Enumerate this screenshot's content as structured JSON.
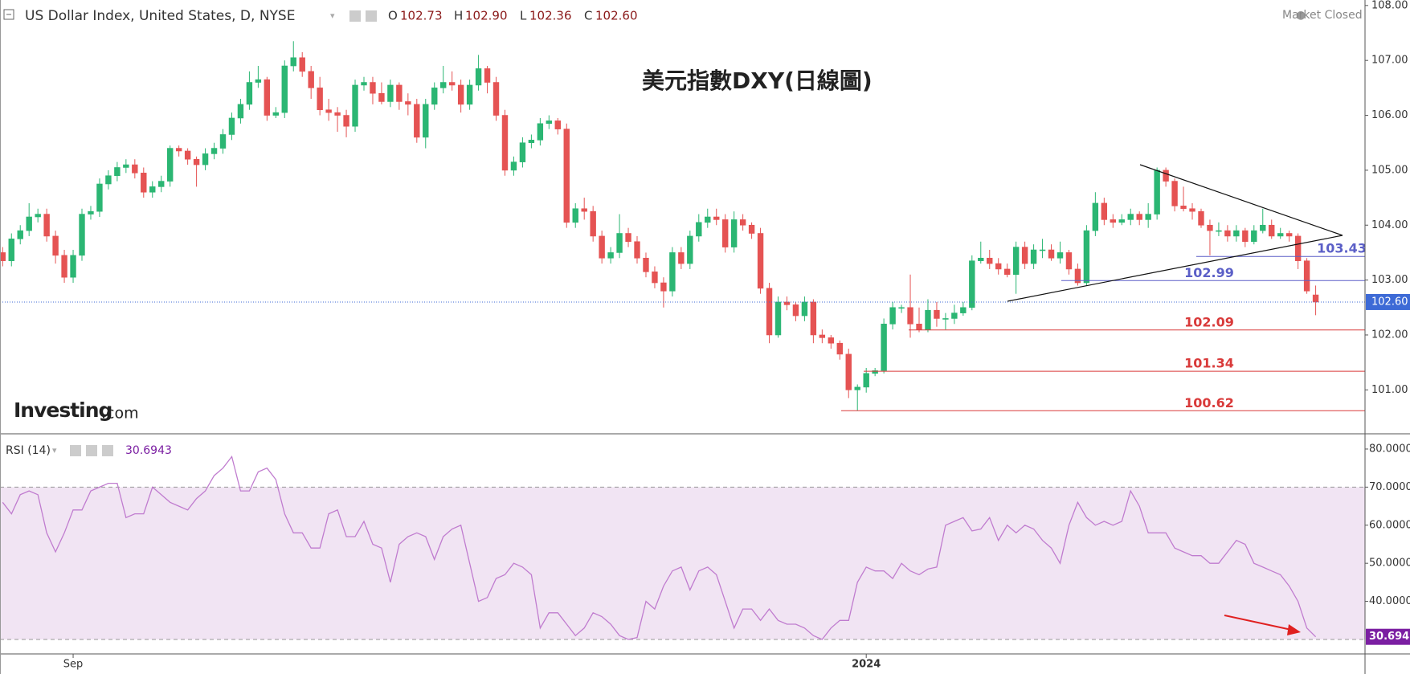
{
  "chart_data": [
    {
      "type": "candlestick",
      "title": "US Dollar Index, United States, D, NYSE",
      "annotation": "美元指數DXY(日線圖)",
      "status": "Market Closed",
      "logo": [
        "Investing",
        ".com"
      ],
      "ohlc_header": [
        {
          "key": "O",
          "value": "102.73"
        },
        {
          "key": "H",
          "value": "102.90"
        },
        {
          "key": "L",
          "value": "102.36"
        },
        {
          "key": "C",
          "value": "102.60"
        }
      ],
      "up_color": "#2bb673",
      "down_color": "#e55353",
      "ohlc": [
        [
          103.5,
          103.6,
          103.25,
          103.35
        ],
        [
          103.35,
          103.85,
          103.25,
          103.75
        ],
        [
          103.75,
          104.0,
          103.65,
          103.9
        ],
        [
          103.9,
          104.4,
          103.8,
          104.15
        ],
        [
          104.15,
          104.3,
          104.05,
          104.2
        ],
        [
          104.2,
          104.3,
          103.7,
          103.8
        ],
        [
          103.8,
          103.9,
          103.3,
          103.45
        ],
        [
          103.45,
          103.55,
          102.95,
          103.05
        ],
        [
          103.05,
          103.55,
          102.95,
          103.45
        ],
        [
          103.45,
          104.3,
          103.35,
          104.2
        ],
        [
          104.2,
          104.35,
          104.1,
          104.25
        ],
        [
          104.25,
          104.85,
          104.15,
          104.75
        ],
        [
          104.75,
          105.0,
          104.65,
          104.9
        ],
        [
          104.9,
          105.15,
          104.8,
          105.05
        ],
        [
          105.05,
          105.2,
          104.95,
          105.1
        ],
        [
          105.1,
          105.2,
          104.85,
          104.95
        ],
        [
          104.95,
          105.05,
          104.5,
          104.6
        ],
        [
          104.6,
          104.8,
          104.5,
          104.7
        ],
        [
          104.7,
          104.9,
          104.6,
          104.8
        ],
        [
          104.8,
          105.45,
          104.7,
          105.4
        ],
        [
          105.4,
          105.45,
          105.25,
          105.35
        ],
        [
          105.35,
          105.4,
          105.1,
          105.2
        ],
        [
          105.2,
          105.25,
          104.7,
          105.1
        ],
        [
          105.1,
          105.4,
          105.0,
          105.3
        ],
        [
          105.3,
          105.5,
          105.2,
          105.4
        ],
        [
          105.4,
          105.75,
          105.3,
          105.65
        ],
        [
          105.65,
          106.05,
          105.55,
          105.95
        ],
        [
          105.95,
          106.3,
          105.85,
          106.2
        ],
        [
          106.2,
          106.8,
          106.1,
          106.6
        ],
        [
          106.6,
          106.9,
          106.5,
          106.65
        ],
        [
          106.65,
          106.7,
          105.9,
          106.0
        ],
        [
          106.0,
          106.15,
          105.95,
          106.05
        ],
        [
          106.05,
          107.0,
          105.95,
          106.9
        ],
        [
          106.9,
          107.35,
          106.8,
          107.05
        ],
        [
          107.05,
          107.15,
          106.7,
          106.8
        ],
        [
          106.8,
          106.9,
          106.3,
          106.5
        ],
        [
          106.5,
          106.7,
          106.0,
          106.1
        ],
        [
          106.1,
          106.3,
          105.9,
          106.05
        ],
        [
          106.05,
          106.15,
          105.7,
          106.0
        ],
        [
          106.0,
          106.1,
          105.6,
          105.8
        ],
        [
          105.8,
          106.65,
          105.7,
          106.55
        ],
        [
          106.55,
          106.7,
          106.45,
          106.6
        ],
        [
          106.6,
          106.7,
          106.2,
          106.4
        ],
        [
          106.4,
          106.6,
          106.2,
          106.25
        ],
        [
          106.25,
          106.65,
          106.15,
          106.55
        ],
        [
          106.55,
          106.6,
          106.1,
          106.25
        ],
        [
          106.25,
          106.4,
          106.0,
          106.2
        ],
        [
          106.2,
          106.3,
          105.5,
          105.6
        ],
        [
          105.6,
          106.3,
          105.4,
          106.2
        ],
        [
          106.2,
          106.6,
          106.1,
          106.5
        ],
        [
          106.5,
          106.9,
          106.4,
          106.6
        ],
        [
          106.6,
          106.8,
          106.45,
          106.55
        ],
        [
          106.55,
          106.65,
          106.05,
          106.2
        ],
        [
          106.2,
          106.65,
          106.1,
          106.55
        ],
        [
          106.55,
          107.1,
          106.45,
          106.85
        ],
        [
          106.85,
          106.9,
          106.4,
          106.6
        ],
        [
          106.6,
          106.7,
          105.9,
          106.0
        ],
        [
          106.0,
          106.1,
          104.9,
          105.0
        ],
        [
          105.0,
          105.25,
          104.9,
          105.15
        ],
        [
          105.15,
          105.6,
          105.05,
          105.5
        ],
        [
          105.5,
          105.65,
          105.4,
          105.55
        ],
        [
          105.55,
          105.95,
          105.45,
          105.85
        ],
        [
          105.85,
          106.0,
          105.75,
          105.9
        ],
        [
          105.9,
          105.95,
          105.65,
          105.75
        ],
        [
          105.75,
          105.85,
          103.95,
          104.05
        ],
        [
          104.05,
          104.4,
          103.95,
          104.3
        ],
        [
          104.3,
          104.5,
          104.1,
          104.25
        ],
        [
          104.25,
          104.35,
          103.7,
          103.8
        ],
        [
          103.8,
          103.9,
          103.3,
          103.4
        ],
        [
          103.4,
          103.6,
          103.3,
          103.5
        ],
        [
          103.5,
          104.2,
          103.4,
          103.85
        ],
        [
          103.85,
          103.95,
          103.6,
          103.7
        ],
        [
          103.7,
          103.8,
          103.3,
          103.4
        ],
        [
          103.4,
          103.5,
          103.05,
          103.15
        ],
        [
          103.15,
          103.25,
          102.85,
          102.95
        ],
        [
          102.95,
          103.05,
          102.5,
          102.8
        ],
        [
          102.8,
          103.6,
          102.7,
          103.5
        ],
        [
          103.5,
          103.6,
          103.2,
          103.3
        ],
        [
          103.3,
          103.9,
          103.2,
          103.8
        ],
        [
          103.8,
          104.2,
          103.7,
          104.05
        ],
        [
          104.05,
          104.3,
          103.95,
          104.15
        ],
        [
          104.15,
          104.3,
          104.0,
          104.1
        ],
        [
          104.1,
          104.2,
          103.5,
          103.6
        ],
        [
          103.6,
          104.25,
          103.5,
          104.1
        ],
        [
          104.1,
          104.2,
          103.9,
          104.0
        ],
        [
          104.0,
          104.05,
          103.75,
          103.85
        ],
        [
          103.85,
          103.95,
          102.75,
          102.85
        ],
        [
          102.85,
          102.95,
          101.85,
          102.0
        ],
        [
          102.0,
          102.7,
          101.95,
          102.6
        ],
        [
          102.6,
          102.7,
          102.45,
          102.55
        ],
        [
          102.55,
          102.6,
          102.25,
          102.35
        ],
        [
          102.35,
          102.7,
          102.25,
          102.6
        ],
        [
          102.6,
          102.65,
          101.85,
          102.0
        ],
        [
          102.0,
          102.1,
          101.85,
          101.95
        ],
        [
          101.95,
          102.0,
          101.75,
          101.85
        ],
        [
          101.85,
          101.9,
          101.55,
          101.65
        ],
        [
          101.65,
          101.75,
          100.85,
          101.0
        ],
        [
          101.0,
          101.1,
          100.62,
          101.05
        ],
        [
          101.05,
          101.4,
          100.95,
          101.3
        ],
        [
          101.3,
          101.4,
          101.25,
          101.35
        ],
        [
          101.35,
          102.3,
          101.3,
          102.2
        ],
        [
          102.2,
          102.6,
          102.1,
          102.5
        ],
        [
          102.5,
          102.55,
          102.4,
          102.5
        ],
        [
          102.5,
          103.1,
          101.95,
          102.2
        ],
        [
          102.2,
          102.5,
          102.05,
          102.1
        ],
        [
          102.1,
          102.65,
          102.05,
          102.45
        ],
        [
          102.45,
          102.6,
          102.15,
          102.3
        ],
        [
          102.3,
          102.4,
          102.1,
          102.3
        ],
        [
          102.3,
          102.55,
          102.2,
          102.4
        ],
        [
          102.4,
          102.6,
          102.35,
          102.5
        ],
        [
          102.5,
          103.45,
          102.45,
          103.35
        ],
        [
          103.35,
          103.7,
          103.3,
          103.4
        ],
        [
          103.4,
          103.55,
          103.2,
          103.3
        ],
        [
          103.3,
          103.4,
          103.1,
          103.2
        ],
        [
          103.2,
          103.3,
          103.05,
          103.1
        ],
        [
          103.1,
          103.7,
          102.75,
          103.6
        ],
        [
          103.6,
          103.7,
          103.2,
          103.3
        ],
        [
          103.3,
          103.65,
          103.2,
          103.55
        ],
        [
          103.55,
          103.75,
          103.4,
          103.55
        ],
        [
          103.55,
          103.65,
          103.35,
          103.4
        ],
        [
          103.4,
          103.7,
          103.3,
          103.5
        ],
        [
          103.5,
          103.55,
          103.1,
          103.2
        ],
        [
          103.2,
          103.3,
          102.9,
          102.95
        ],
        [
          102.95,
          104.0,
          102.9,
          103.9
        ],
        [
          103.9,
          104.6,
          103.8,
          104.4
        ],
        [
          104.4,
          104.5,
          104.0,
          104.1
        ],
        [
          104.1,
          104.2,
          103.95,
          104.05
        ],
        [
          104.05,
          104.2,
          104.0,
          104.1
        ],
        [
          104.1,
          104.3,
          104.0,
          104.2
        ],
        [
          104.2,
          104.25,
          104.0,
          104.1
        ],
        [
          104.1,
          104.4,
          103.95,
          104.2
        ],
        [
          104.2,
          105.05,
          104.1,
          105.0
        ],
        [
          105.0,
          105.05,
          104.7,
          104.8
        ],
        [
          104.8,
          104.85,
          104.25,
          104.35
        ],
        [
          104.35,
          104.7,
          104.25,
          104.3
        ],
        [
          104.3,
          104.4,
          104.1,
          104.25
        ],
        [
          104.25,
          104.3,
          103.95,
          104.0
        ],
        [
          104.0,
          104.1,
          103.45,
          103.9
        ],
        [
          103.9,
          104.05,
          103.8,
          103.9
        ],
        [
          103.9,
          104.0,
          103.7,
          103.8
        ],
        [
          103.8,
          104.0,
          103.7,
          103.9
        ],
        [
          103.9,
          103.95,
          103.6,
          103.7
        ],
        [
          103.7,
          104.0,
          103.65,
          103.9
        ],
        [
          103.9,
          104.3,
          103.85,
          104.0
        ],
        [
          104.0,
          104.1,
          103.75,
          103.8
        ],
        [
          103.8,
          103.95,
          103.75,
          103.85
        ],
        [
          103.85,
          103.9,
          103.7,
          103.8
        ],
        [
          103.8,
          103.85,
          103.2,
          103.35
        ],
        [
          103.35,
          103.4,
          102.75,
          102.8
        ],
        [
          102.73,
          102.9,
          102.36,
          102.6
        ]
      ],
      "xlim": [
        -0.3,
        154.6
      ],
      "ylim": [
        100.2,
        108.1
      ],
      "yticks": [
        {
          "value": 101,
          "label": "101.00"
        },
        {
          "value": 102,
          "label": "102.00"
        },
        {
          "value": 103,
          "label": "103.00"
        },
        {
          "value": 104,
          "label": "104.00"
        },
        {
          "value": 105,
          "label": "105.00"
        },
        {
          "value": 106,
          "label": "106.00"
        },
        {
          "value": 107,
          "label": "107.00"
        },
        {
          "value": 108,
          "label": "108.00"
        }
      ],
      "last_price": {
        "value": 102.6,
        "label": "102.60",
        "color": "#3d6ad6"
      },
      "levels": [
        {
          "value": 103.43,
          "color": "#5b5fc7"
        },
        {
          "value": 102.99,
          "color": "#5b5fc7"
        },
        {
          "value": 102.09,
          "color": "#d93a3a"
        },
        {
          "value": 101.34,
          "color": "#d93a3a"
        },
        {
          "value": 100.62,
          "color": "#d93a3a"
        }
      ]
    },
    {
      "type": "line",
      "title": "RSI (14)",
      "color": "#c07ccf",
      "tag_color": "#7b1fa2",
      "band": [
        30,
        70
      ],
      "band_color": "#f1e4f3",
      "values": [
        66,
        63,
        68,
        69,
        68,
        58,
        53,
        58,
        64,
        64,
        69,
        70,
        71,
        71,
        62,
        63,
        63,
        70,
        68,
        66,
        65,
        64,
        67,
        69,
        73,
        75,
        78,
        69,
        69,
        74,
        75,
        72,
        63,
        58,
        58,
        54,
        54,
        63,
        64,
        57,
        57,
        61,
        55,
        54,
        45,
        55,
        57,
        58,
        57,
        51,
        57,
        59,
        60,
        50,
        40,
        41,
        46,
        47,
        50,
        49,
        47,
        33,
        37,
        37,
        34,
        31,
        33,
        37,
        36,
        34,
        31,
        30,
        30.5,
        40,
        38,
        44,
        48,
        49,
        43,
        48,
        49,
        47,
        40,
        33,
        38,
        38,
        35,
        38,
        35,
        34,
        34,
        33,
        31,
        30,
        33,
        35,
        35,
        45,
        49,
        48,
        48,
        46,
        50,
        48,
        47,
        48.5,
        49,
        60,
        61,
        62,
        58.5,
        59,
        62,
        56,
        60,
        58,
        60,
        59,
        56,
        54,
        50,
        60,
        66,
        62,
        60,
        61,
        60,
        61,
        69,
        65,
        58,
        58,
        58,
        54,
        53,
        52,
        52,
        50,
        50,
        53,
        56,
        55,
        50,
        49,
        48,
        47,
        44,
        40,
        33,
        30.6943
      ],
      "xlim": [
        -0.3,
        154.6
      ],
      "xticks": [
        {
          "value": 8,
          "label": "Sep"
        },
        {
          "value": 98,
          "label": "2024"
        }
      ],
      "ylim": [
        26.2,
        84
      ],
      "yticks": [
        {
          "value": 40,
          "label": "40.0000"
        },
        {
          "value": 50,
          "label": "50.0000"
        },
        {
          "value": 60,
          "label": "60.0000"
        },
        {
          "value": 70,
          "label": "70.0000"
        },
        {
          "value": 80,
          "label": "80.0000"
        }
      ]
    }
  ]
}
